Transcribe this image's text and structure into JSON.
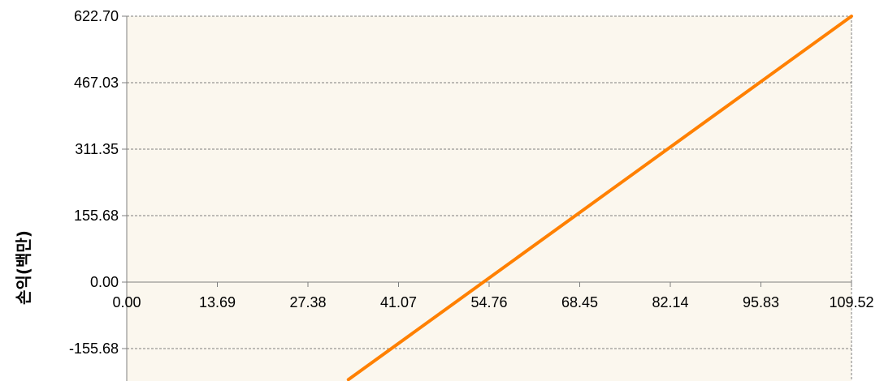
{
  "chart_data": {
    "type": "line",
    "title": "",
    "xlabel": "",
    "ylabel": "손익(백만)",
    "x_ticks": [
      "0.00",
      "13.69",
      "27.38",
      "41.07",
      "54.76",
      "68.45",
      "82.14",
      "95.83",
      "109.52"
    ],
    "y_ticks": [
      "622.70",
      "467.03",
      "311.35",
      "155.68",
      "0.00",
      "-155.68"
    ],
    "xlim": [
      0,
      109.52
    ],
    "ylim": [
      -240,
      622.7
    ],
    "grid": true,
    "legend": "none",
    "series": [
      {
        "x": [
          33.5,
          109.52
        ],
        "y": [
          -228.4,
          622.7
        ]
      }
    ]
  },
  "colors": {
    "plot_background": "#fbf7ee",
    "grid": "#7f7f7f",
    "line": "#ff8000",
    "axis": "#7f7f7f"
  }
}
